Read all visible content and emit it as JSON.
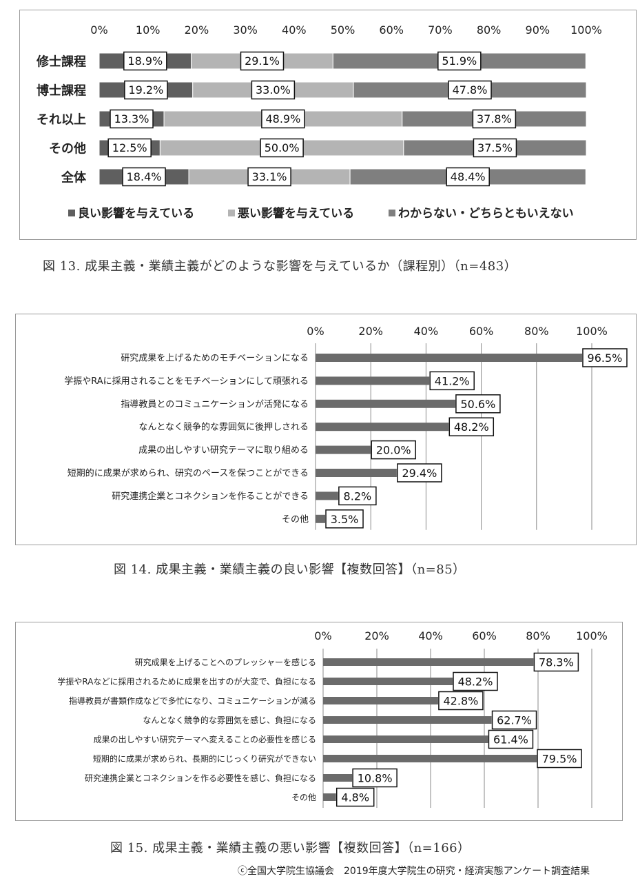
{
  "figure13": {
    "caption": "図 13. 成果主義・業績主義がどのような影響を与えているか（課程別）（n=483）",
    "chart_data": {
      "type": "bar",
      "orientation": "horizontal",
      "stacked": true,
      "percent_stacked": true,
      "categories": [
        "修士課程",
        "博士課程",
        "それ以上",
        "その他",
        "全体"
      ],
      "series": [
        {
          "name": "良い影響を与えている",
          "color": "#5f5f5f",
          "values": [
            18.9,
            19.2,
            13.3,
            12.5,
            18.4
          ],
          "labels": [
            "18.9%",
            "19.2%",
            "13.3%",
            "12.5%",
            "18.4%"
          ]
        },
        {
          "name": "悪い影響を与えている",
          "color": "#b4b4b4",
          "values": [
            29.1,
            33.0,
            48.9,
            50.0,
            33.1
          ],
          "labels": [
            "29.1%",
            "33.0%",
            "48.9%",
            "50.0%",
            "33.1%"
          ]
        },
        {
          "name": "わからない・どちらともいえない",
          "color": "#7f7f7f",
          "values": [
            51.9,
            47.8,
            37.8,
            37.5,
            48.4
          ],
          "labels": [
            "51.9%",
            "47.8%",
            "37.8%",
            "37.5%",
            "48.4%"
          ]
        }
      ],
      "xlim": [
        0,
        100
      ],
      "ticks": [
        "0%",
        "10%",
        "20%",
        "30%",
        "40%",
        "50%",
        "60%",
        "70%",
        "80%",
        "90%",
        "100%"
      ],
      "tick_axis_position": "top",
      "grid": false,
      "legend": "bottom"
    }
  },
  "figure14": {
    "caption": "図 14. 成果主義・業績主義の良い影響【複数回答】（n=85）",
    "chart_data": {
      "type": "bar",
      "orientation": "horizontal",
      "categories": [
        "研究成果を上げるためのモチベーションになる",
        "学振やRAに採用されることをモチベーションにして頑張れる",
        "指導教員とのコミュニケーションが活発になる",
        "なんとなく競争的な雰囲気に後押しされる",
        "成果の出しやすい研究テーマに取り組める",
        "短期的に成果が求められ、研究のペースを保つことができる",
        "研究連携企業とコネクションを作ることができる",
        "その他"
      ],
      "values": [
        96.5,
        41.2,
        50.6,
        48.2,
        20.0,
        29.4,
        8.2,
        3.5
      ],
      "labels": [
        "96.5%",
        "41.2%",
        "50.6%",
        "48.2%",
        "20.0%",
        "29.4%",
        "8.2%",
        "3.5%"
      ],
      "color": "#6b6b6b",
      "xlim": [
        0,
        100
      ],
      "ticks": [
        "0%",
        "20%",
        "40%",
        "60%",
        "80%",
        "100%"
      ],
      "tick_axis_position": "top",
      "grid": true,
      "legend": "none"
    }
  },
  "figure15": {
    "caption": "図 15. 成果主義・業績主義の悪い影響【複数回答】（n=166）",
    "chart_data": {
      "type": "bar",
      "orientation": "horizontal",
      "categories": [
        "研究成果を上げることへのプレッシャーを感じる",
        "学振やRAなどに採用されるために成果を出すのが大変で、負担になる",
        "指導教員が書類作成などで多忙になり、コミュニケーションが減る",
        "なんとなく競争的な雰囲気を感じ、負担になる",
        "成果の出しやすい研究テーマへ変えることの必要性を感じる",
        "短期的に成果が求められ、長期的にじっくり研究ができない",
        "研究連携企業とコネクションを作る必要性を感じ、負担になる",
        "その他"
      ],
      "values": [
        78.3,
        48.2,
        42.8,
        62.7,
        61.4,
        79.5,
        10.8,
        4.8
      ],
      "labels": [
        "78.3%",
        "48.2%",
        "42.8%",
        "62.7%",
        "61.4%",
        "79.5%",
        "10.8%",
        "4.8%"
      ],
      "color": "#6b6b6b",
      "xlim": [
        0,
        100
      ],
      "ticks": [
        "0%",
        "20%",
        "40%",
        "60%",
        "80%",
        "100%"
      ],
      "tick_axis_position": "top",
      "grid": true,
      "legend": "none"
    }
  },
  "footer": "ⓒ全国大学院生協議会　2019年度大学院生の研究・経済実態アンケート調査結果"
}
